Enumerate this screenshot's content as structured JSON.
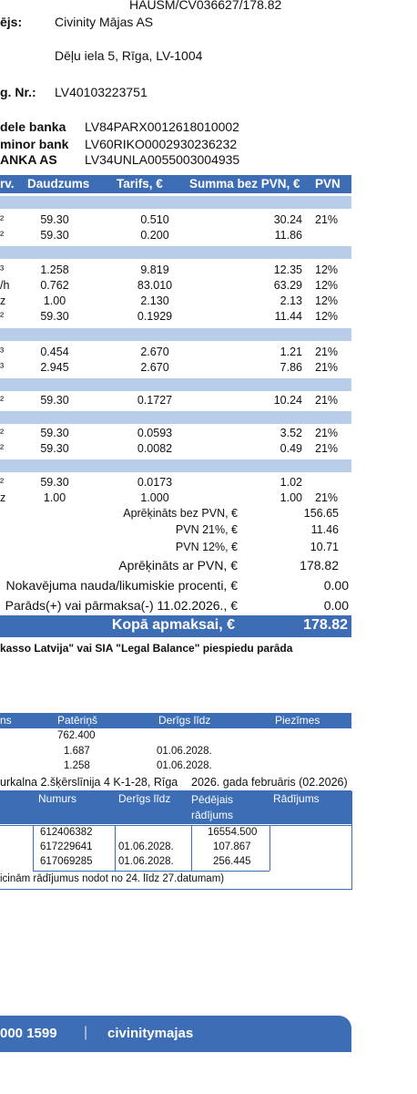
{
  "header": {
    "doc_number": "HAUSM/CV036627/178.82",
    "issuer_label": "ējs:",
    "issuer_name": "Civinity Mājas AS",
    "issuer_address": "Dēļu iela 5, Rīga, LV-1004",
    "reg_label": "g. Nr.:",
    "reg_value": "LV40103223751",
    "banks": [
      {
        "name": "dele banka",
        "iban": "LV84PARX0012618010002"
      },
      {
        "name": "minor bank",
        "iban": "LV60RIKO0002930236232"
      },
      {
        "name": "ANKA AS",
        "iban": "LV34UNLA0055003004935"
      }
    ]
  },
  "table1": {
    "headers": {
      "unit": "rv.",
      "qty": "Daudzums",
      "rate": "Tarifs, €",
      "sum": "Summa bez PVN, €",
      "vat": "PVN"
    },
    "groups": [
      {
        "rows": [
          {
            "unit": "²",
            "qty": "59.30",
            "rate": "0.510",
            "sum": "30.24",
            "vat": "21%"
          },
          {
            "unit": "²",
            "qty": "59.30",
            "rate": "0.200",
            "sum": "11.86",
            "vat": ""
          }
        ]
      },
      {
        "rows": [
          {
            "unit": "³",
            "qty": "1.258",
            "rate": "9.819",
            "sum": "12.35",
            "vat": "12%"
          },
          {
            "unit": "/h",
            "qty": "0.762",
            "rate": "83.010",
            "sum": "63.29",
            "vat": "12%"
          },
          {
            "unit": "z",
            "qty": "1.00",
            "rate": "2.130",
            "sum": "2.13",
            "vat": "12%"
          },
          {
            "unit": "²",
            "qty": "59.30",
            "rate": "0.1929",
            "sum": "11.44",
            "vat": "12%"
          }
        ]
      },
      {
        "rows": [
          {
            "unit": "³",
            "qty": "0.454",
            "rate": "2.670",
            "sum": "1.21",
            "vat": "21%"
          },
          {
            "unit": "³",
            "qty": "2.945",
            "rate": "2.670",
            "sum": "7.86",
            "vat": "21%"
          }
        ]
      },
      {
        "rows": [
          {
            "unit": "²",
            "qty": "59.30",
            "rate": "0.1727",
            "sum": "10.24",
            "vat": "21%"
          }
        ]
      },
      {
        "rows": [
          {
            "unit": "²",
            "qty": "59.30",
            "rate": "0.0593",
            "sum": "3.52",
            "vat": "21%"
          },
          {
            "unit": "²",
            "qty": "59.30",
            "rate": "0.0082",
            "sum": "0.49",
            "vat": "21%"
          }
        ]
      },
      {
        "rows": [
          {
            "unit": "²",
            "qty": "59.30",
            "rate": "0.0173",
            "sum": "1.02",
            "vat": ""
          },
          {
            "unit": "z",
            "qty": "1.00",
            "rate": "1.000",
            "sum": "1.00",
            "vat": "21%"
          }
        ]
      }
    ]
  },
  "summary": {
    "net_label": "Aprēķināts bez PVN, €",
    "net_value": "156.65",
    "vat21_label": "PVN 21%, €",
    "vat21_value": "11.46",
    "vat12_label": "PVN 12%, €",
    "vat12_value": "10.71",
    "gross_label": "Aprēķināts ar PVN, €",
    "gross_value": "178.82",
    "penalty_label": "Nokavējuma nauda/likumiskie procenti, €",
    "penalty_value": "0.00",
    "debt_label": "Parāds(+) vai pārmaksa(-) 11.02.2026., €",
    "debt_value": "0.00",
    "total_label": "Kopā apmaksai, €",
    "total_value": "178.82"
  },
  "notice": "kasso Latvija\" vai SIA \"Legal Balance\" piespiedu parāda",
  "table2": {
    "headers": {
      "c1": "ns",
      "c2": "Patēriņš",
      "c3": "Derīgs līdz",
      "c4": "Piezīmes"
    },
    "rows": [
      {
        "c2": "762.400",
        "c3": ""
      },
      {
        "c2": "1.687",
        "c3": "01.06.2028."
      },
      {
        "c2": "1.258",
        "c3": "01.06.2028."
      }
    ]
  },
  "address_line": "urkalna 2.šķērslīnija 4 K-1-28, Rīga",
  "period_line": "2026. gada februāris (02.2026)",
  "table3": {
    "headers": {
      "num": "Numurs",
      "valid": "Derīgs līdz",
      "last": "Pēdējais rādījums",
      "reading": "Rādījums"
    },
    "rows": [
      {
        "num": "612406382",
        "valid": "",
        "last": "16554.500"
      },
      {
        "num": "617229641",
        "valid": "01.06.2028.",
        "last": "107.867"
      },
      {
        "num": "617069285",
        "valid": "01.06.2028.",
        "last": "256.445"
      }
    ],
    "note": "icinām rādījumus nodot no 24. līdz 27.datumam)"
  },
  "footer": {
    "phone": "000 1599",
    "separator": "|",
    "brand": "civinitymajas"
  }
}
